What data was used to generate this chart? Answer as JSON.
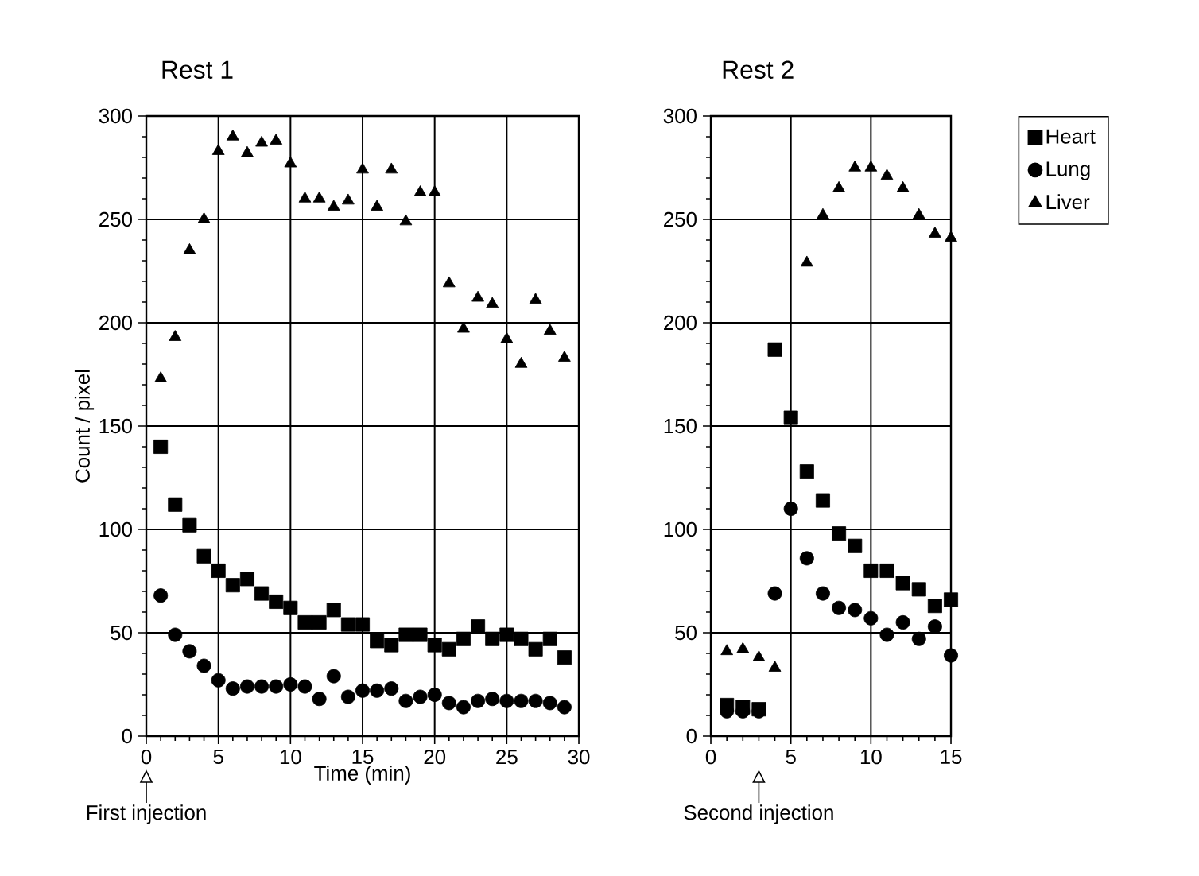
{
  "chart_data": [
    {
      "type": "scatter",
      "title": "Rest 1",
      "xlabel": "Time (min)",
      "ylabel": "Count / pixel",
      "x": [
        1,
        2,
        3,
        4,
        5,
        6,
        7,
        8,
        9,
        10,
        11,
        12,
        13,
        14,
        15,
        16,
        17,
        18,
        19,
        20,
        21,
        22,
        23,
        24,
        25,
        26,
        27,
        28,
        29
      ],
      "series": [
        {
          "color": "#000000",
          "marker": "square",
          "values": [
            140,
            112,
            102,
            87,
            80,
            73,
            76,
            69,
            65,
            62,
            55,
            55,
            61,
            54,
            54,
            46,
            44,
            49,
            49,
            44,
            42,
            47,
            53,
            47,
            49,
            47,
            42,
            47,
            38
          ]
        },
        {
          "color": "#000000",
          "marker": "circle",
          "values": [
            68,
            49,
            41,
            34,
            27,
            23,
            24,
            24,
            24,
            25,
            24,
            18,
            29,
            19,
            22,
            22,
            23,
            17,
            19,
            20,
            16,
            14,
            17,
            18,
            17,
            17,
            17,
            16,
            14
          ]
        },
        {
          "color": "#000000",
          "marker": "triangle",
          "values": [
            173,
            193,
            235,
            250,
            283,
            290,
            282,
            287,
            288,
            277,
            260,
            260,
            256,
            259,
            274,
            256,
            274,
            249,
            263,
            263,
            219,
            197,
            212,
            209,
            192,
            180,
            211,
            196,
            183
          ]
        }
      ],
      "xlim": [
        0,
        30
      ],
      "ylim": [
        0,
        300
      ],
      "xticks": [
        0,
        5,
        10,
        15,
        20,
        25,
        30
      ],
      "yticks": [
        0,
        50,
        100,
        150,
        200,
        250,
        300
      ],
      "grid": true,
      "ref_lines": [
        {
          "axis": "x",
          "value": 0,
          "label": "First injection"
        }
      ]
    },
    {
      "type": "scatter",
      "title": "Rest 2",
      "x": [
        1,
        2,
        3,
        4,
        5,
        6,
        7,
        8,
        9,
        10,
        11,
        12,
        13,
        14,
        15
      ],
      "series": [
        {
          "name": "Heart",
          "color": "#000000",
          "marker": "square",
          "values": [
            15,
            14,
            13,
            187,
            154,
            128,
            114,
            98,
            92,
            80,
            80,
            74,
            71,
            63,
            66
          ]
        },
        {
          "name": "Lung",
          "color": "#000000",
          "marker": "circle",
          "values": [
            12,
            12,
            12,
            69,
            110,
            86,
            69,
            62,
            61,
            57,
            49,
            55,
            47,
            53,
            39
          ]
        },
        {
          "name": "Liver",
          "color": "#000000",
          "marker": "triangle",
          "x": [
            1,
            2,
            3,
            4,
            6,
            7,
            8,
            9,
            10,
            11,
            12,
            13,
            14,
            15
          ],
          "values": [
            41,
            42,
            38,
            33,
            229,
            252,
            265,
            275,
            275,
            271,
            265,
            252,
            243,
            241
          ]
        }
      ],
      "xlim": [
        0,
        15
      ],
      "ylim": [
        0,
        300
      ],
      "xticks": [
        0,
        5,
        10,
        15
      ],
      "yticks": [
        0,
        50,
        100,
        150,
        200,
        250,
        300
      ],
      "grid": true,
      "legend": "right",
      "ref_lines": [
        {
          "axis": "x",
          "value": 3,
          "label": "Second injection"
        }
      ]
    }
  ]
}
